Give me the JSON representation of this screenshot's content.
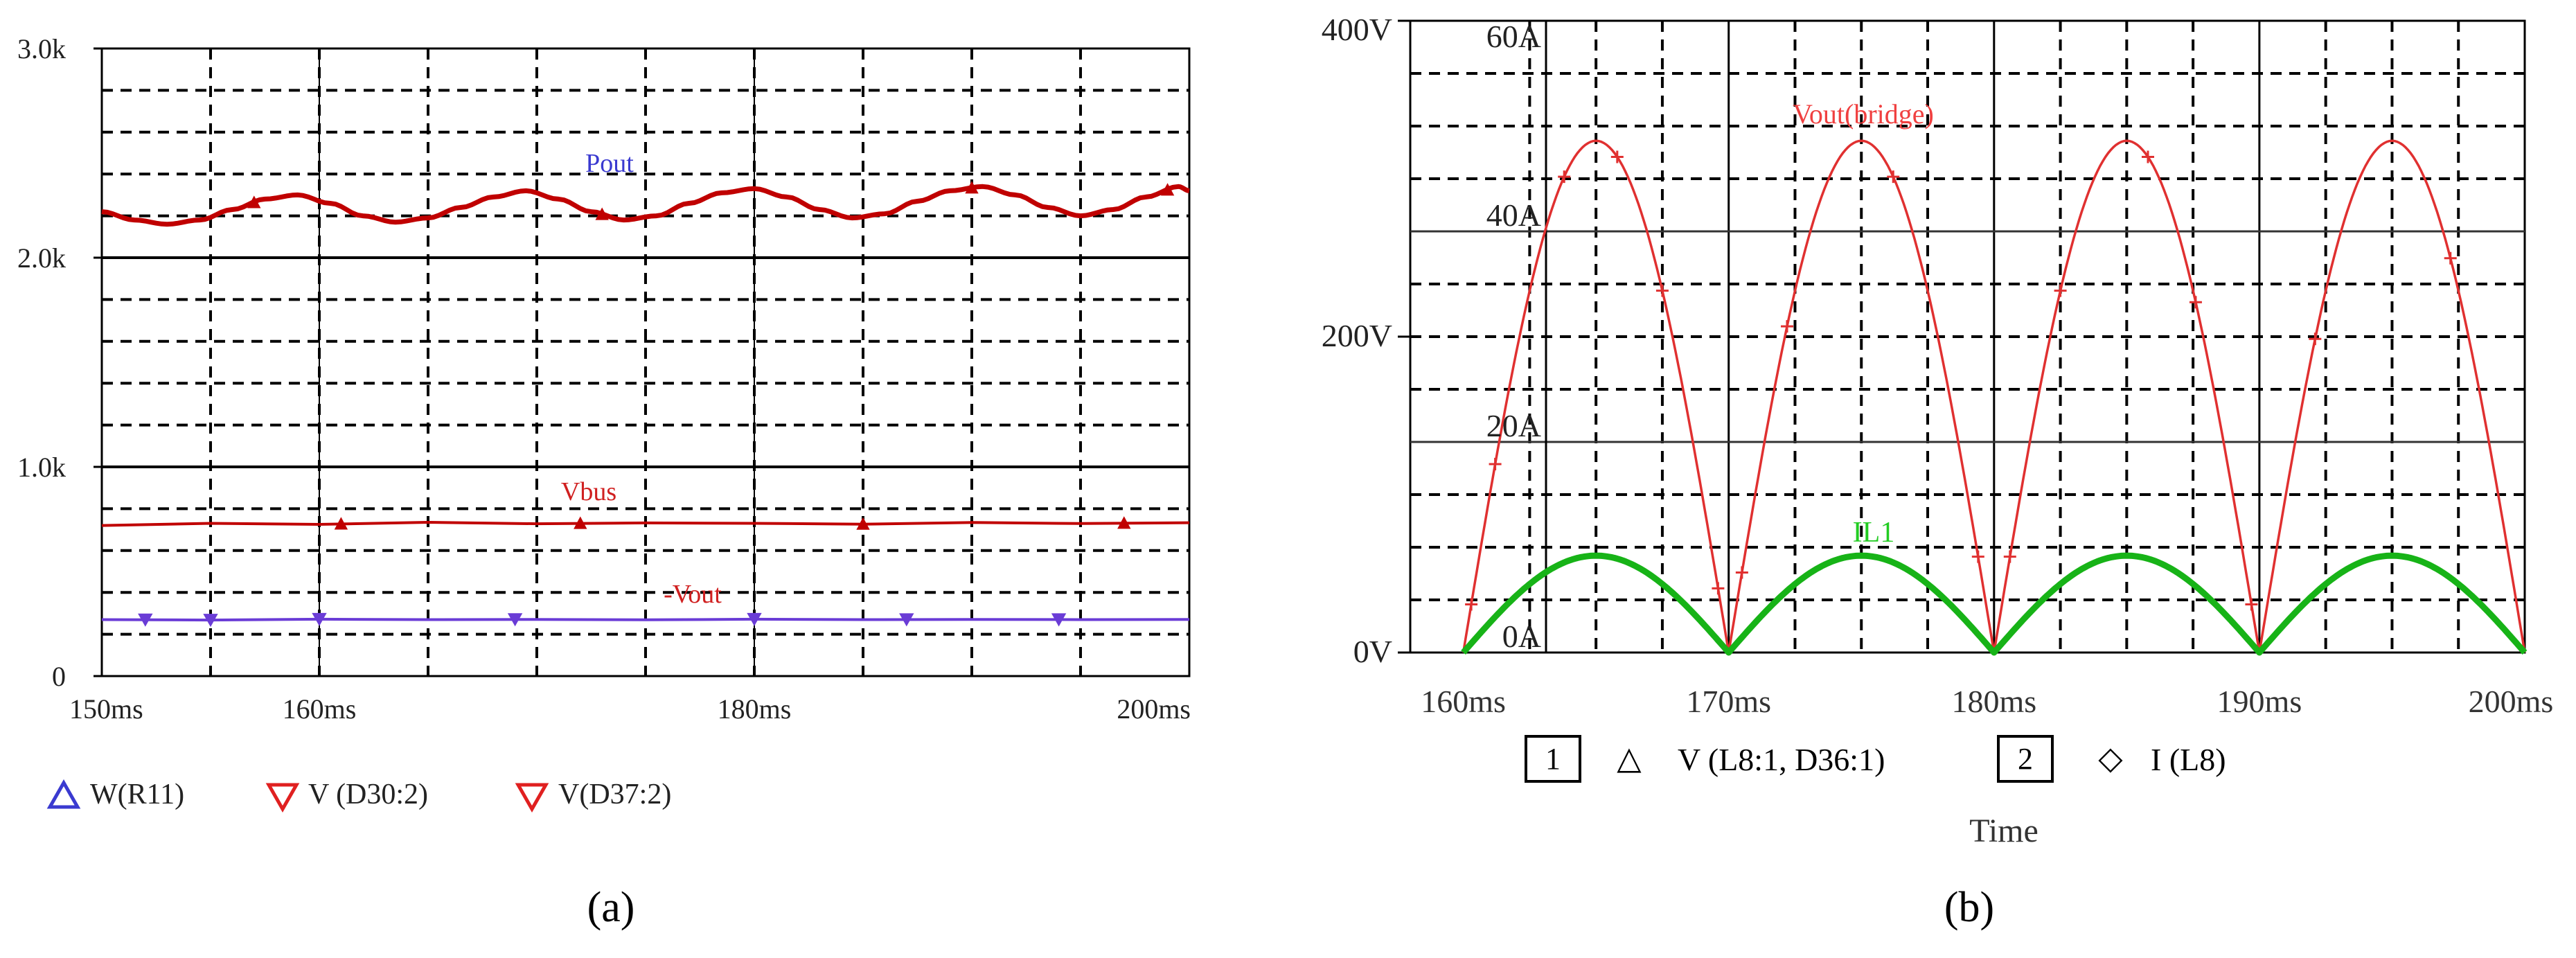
{
  "chart_data": [
    {
      "panel_label": "(a)",
      "type": "line",
      "x_unit": "ms",
      "xlim": [
        150,
        200
      ],
      "ylim": [
        0,
        3000
      ],
      "x_tick_labels": [
        "150ms",
        "160ms",
        "180ms",
        "200ms"
      ],
      "y_tick_labels": [
        "0",
        "1.0k",
        "2.0k",
        "3.0k"
      ],
      "grid": true,
      "annotations": [
        "Pout",
        "Vbus",
        "-Vout"
      ],
      "legend_entries": [
        "W(R11)",
        "V (D30:2)",
        "V(D37:2)"
      ],
      "series": [
        {
          "name": "W(R11)",
          "color": "#c00000",
          "x": [
            150,
            151.5,
            153,
            154.5,
            156,
            157.5,
            159,
            160.5,
            162,
            163.5,
            165,
            166.5,
            168,
            169.5,
            171,
            172.5,
            174,
            175.5,
            177,
            178.5,
            180,
            181.5,
            183,
            184.5,
            186,
            187.5,
            189,
            190.5,
            192,
            193.5,
            195,
            196.5,
            198,
            199.5,
            200
          ],
          "values": [
            2220,
            2180,
            2160,
            2180,
            2230,
            2280,
            2300,
            2260,
            2200,
            2170,
            2190,
            2240,
            2290,
            2320,
            2280,
            2220,
            2180,
            2200,
            2260,
            2310,
            2330,
            2290,
            2230,
            2190,
            2210,
            2270,
            2320,
            2340,
            2300,
            2240,
            2200,
            2230,
            2290,
            2340,
            2320
          ]
        },
        {
          "name": "V (D30:2)",
          "color": "#c00000",
          "x": [
            150,
            155,
            160,
            165,
            170,
            175,
            180,
            185,
            190,
            195,
            200
          ],
          "values": [
            720,
            730,
            725,
            735,
            728,
            732,
            730,
            726,
            734,
            729,
            733
          ]
        },
        {
          "name": "V(D37:2)",
          "color": "#6a3cd6",
          "x": [
            150,
            155,
            160,
            165,
            170,
            175,
            180,
            185,
            190,
            195,
            200
          ],
          "values": [
            270,
            268,
            272,
            270,
            271,
            269,
            272,
            270,
            271,
            270,
            271
          ]
        }
      ]
    },
    {
      "panel_label": "(b)",
      "type": "line",
      "x_unit": "ms",
      "xlim": [
        158,
        200
      ],
      "y_left_ticks": [
        "0V",
        "200V",
        "400V"
      ],
      "ylim_left": [
        0,
        400
      ],
      "y_right_ticks": [
        "0A",
        "20A",
        "40A",
        "60A"
      ],
      "ylim_right": [
        0,
        60
      ],
      "x_tick_labels": [
        "160ms",
        "170ms",
        "180ms",
        "190ms",
        "200ms"
      ],
      "xlabel": "Time",
      "grid": true,
      "annotations": [
        "Vout(bridge)",
        "IL1"
      ],
      "legend": [
        {
          "box": "1",
          "marker": "△",
          "text": "V (L8:1, D36:1)"
        },
        {
          "box": "2",
          "marker": "◇",
          "text": "I (L8)"
        }
      ],
      "series": [
        {
          "name": "Vout(bridge)",
          "color": "#e03030",
          "axis": "left",
          "period_ms": 10,
          "x": [
            160,
            162.5,
            165,
            167.5,
            170,
            172.5,
            175,
            177.5,
            180,
            182.5,
            185,
            187.5,
            190,
            192.5,
            195,
            197.5,
            200
          ],
          "values": [
            0,
            229,
            324,
            229,
            0,
            229,
            324,
            229,
            0,
            229,
            324,
            229,
            0,
            229,
            324,
            229,
            0
          ]
        },
        {
          "name": "IL1",
          "color": "#17b317",
          "axis": "right",
          "period_ms": 10,
          "x": [
            160,
            162.5,
            165,
            167.5,
            170,
            172.5,
            175,
            177.5,
            180,
            182.5,
            185,
            187.5,
            190,
            192.5,
            195,
            197.5,
            200
          ],
          "values": [
            0,
            6.5,
            9.2,
            6.5,
            0,
            6.5,
            9.2,
            6.5,
            0,
            6.5,
            9.2,
            6.5,
            0,
            6.5,
            9.2,
            6.5,
            0
          ]
        }
      ]
    }
  ]
}
